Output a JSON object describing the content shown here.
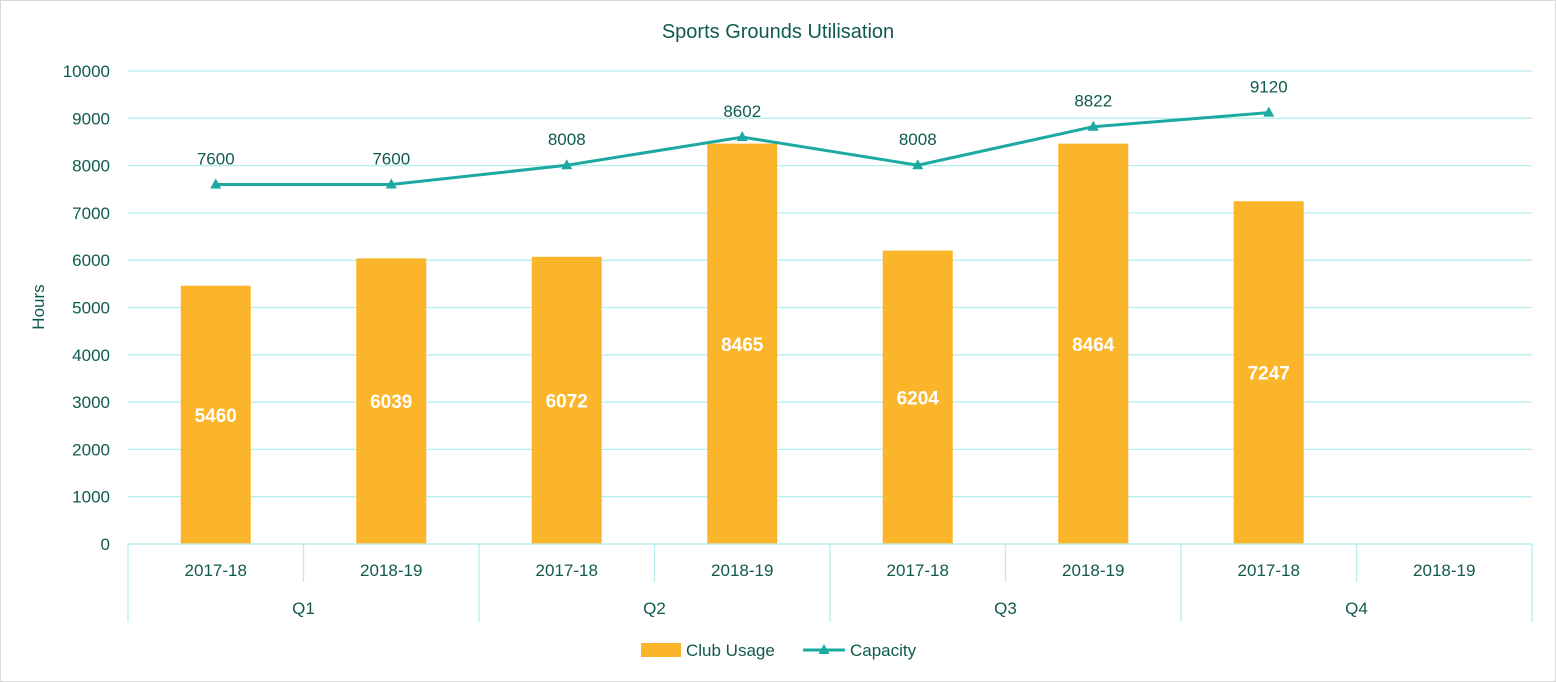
{
  "chart_data": {
    "type": "bar",
    "title": "Sports Grounds Utilisation",
    "ylabel": "Hours",
    "xlabel": "",
    "ylim": [
      0,
      10000
    ],
    "ytick_step": 1000,
    "grid": true,
    "legend_position": "bottom",
    "groups": [
      {
        "label": "Q1",
        "categories": [
          "2017-18",
          "2018-19"
        ]
      },
      {
        "label": "Q2",
        "categories": [
          "2017-18",
          "2018-19"
        ]
      },
      {
        "label": "Q3",
        "categories": [
          "2017-18",
          "2018-19"
        ]
      },
      {
        "label": "Q4",
        "categories": [
          "2017-18",
          "2018-19"
        ]
      }
    ],
    "series": [
      {
        "name": "Club Usage",
        "type": "bar",
        "color": "#FBB52A",
        "values": [
          5460,
          6039,
          6072,
          8465,
          6204,
          8464,
          7247,
          null
        ]
      },
      {
        "name": "Capacity",
        "type": "line",
        "color": "#1BA9A1",
        "values": [
          7600,
          7600,
          8008,
          8602,
          8008,
          8822,
          9120,
          null
        ]
      }
    ],
    "colors": {
      "text": "#0F5A4E",
      "grid": "#B7EEEE",
      "bar_label": "#ffffff"
    }
  }
}
